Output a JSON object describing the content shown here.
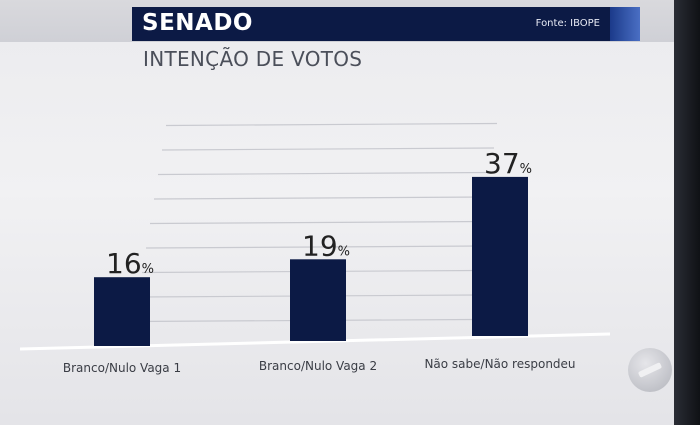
{
  "header": {
    "title": "SENADO",
    "source": "Fonte: IBOPE",
    "subtitle": "INTENÇÃO DE VOTOS"
  },
  "colors": {
    "bar": "#0c1a45",
    "header": "#0c1a45",
    "text": "#222222"
  },
  "chart_data": {
    "type": "bar",
    "title": "INTENÇÃO DE VOTOS",
    "categories": [
      "Branco/Nulo Vaga 1",
      "Branco/Nulo Vaga 2",
      "Não sabe/Não respondeu"
    ],
    "values": [
      16,
      19,
      37
    ],
    "value_suffix": "%",
    "ylim": [
      0,
      55
    ],
    "grid": true
  }
}
